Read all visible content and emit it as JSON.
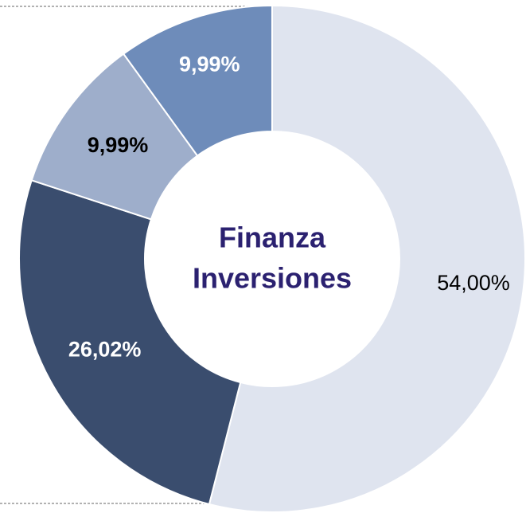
{
  "chart_data": {
    "type": "donut",
    "center_label": [
      "Finanza",
      "Inversiones"
    ],
    "values": [
      54.0,
      26.02,
      9.99,
      9.99
    ],
    "value_labels": [
      "54,00%",
      "26,02%",
      "9,99%",
      "9,99%"
    ],
    "colors": [
      "#dfe4ef",
      "#3a4d6e",
      "#9eaecb",
      "#6e8cba"
    ],
    "label_colors": [
      "#000000",
      "#ffffff",
      "#000000",
      "#ffffff"
    ],
    "label_bold": [
      false,
      true,
      true,
      true
    ]
  }
}
